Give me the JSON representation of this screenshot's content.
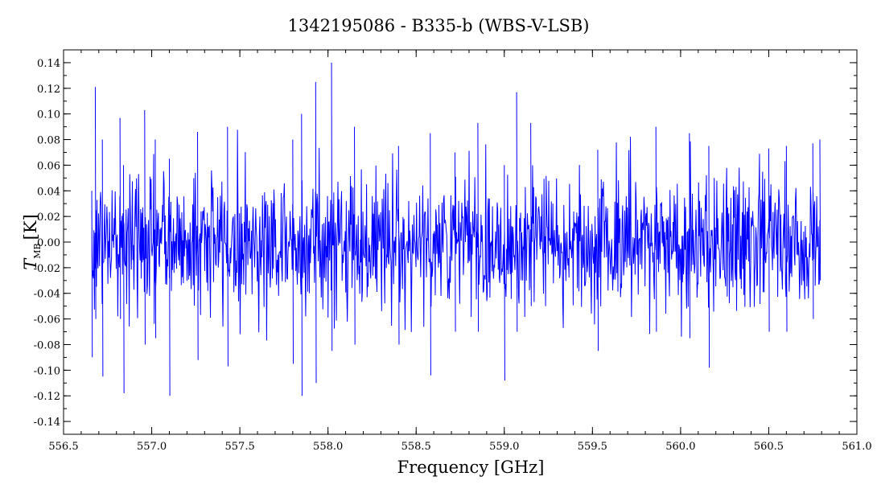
{
  "chart_data": {
    "type": "line",
    "title": "1342195086 - B335-b (WBS-V-LSB)",
    "xlabel": "Frequency [GHz]",
    "ylabel": {
      "symbol": "T",
      "subscript": "MB",
      "unit": "[K]"
    },
    "xlim": [
      556.5,
      561.0
    ],
    "ylim": [
      -0.15,
      0.15
    ],
    "x_ticks": [
      "556.5",
      "557.0",
      "557.5",
      "558.0",
      "558.5",
      "559.0",
      "559.5",
      "560.0",
      "560.5",
      "561.0"
    ],
    "y_ticks": [
      "-0.14",
      "-0.12",
      "-0.10",
      "-0.08",
      "-0.06",
      "-0.04",
      "-0.02",
      "0.00",
      "0.02",
      "0.04",
      "0.06",
      "0.08",
      "0.10",
      "0.12",
      "0.14"
    ],
    "grid": false,
    "legend": "none",
    "series": [
      {
        "color": "#0000ff",
        "x_start": 556.66,
        "x_end": 560.79,
        "n_points": 1400,
        "baseline": 0.0,
        "noise_rms": 0.032,
        "envelope_points": [
          [
            556.66,
            0.04,
            -0.09
          ],
          [
            556.68,
            0.121,
            -0.06
          ],
          [
            556.72,
            0.08,
            -0.105
          ],
          [
            556.82,
            0.097,
            -0.06
          ],
          [
            556.84,
            0.06,
            -0.118
          ],
          [
            556.96,
            0.103,
            -0.08
          ],
          [
            557.02,
            0.08,
            -0.075
          ],
          [
            557.1,
            0.065,
            -0.12
          ],
          [
            557.26,
            0.086,
            -0.092
          ],
          [
            557.43,
            0.09,
            -0.097
          ],
          [
            557.8,
            0.08,
            -0.095
          ],
          [
            557.85,
            0.1,
            -0.12
          ],
          [
            557.93,
            0.125,
            -0.11
          ],
          [
            558.02,
            0.14,
            -0.085
          ],
          [
            558.15,
            0.09,
            -0.08
          ],
          [
            558.4,
            0.075,
            -0.08
          ],
          [
            558.58,
            0.085,
            -0.104
          ],
          [
            558.72,
            0.07,
            -0.07
          ],
          [
            558.85,
            0.093,
            -0.07
          ],
          [
            559.0,
            0.06,
            -0.108
          ],
          [
            559.07,
            0.117,
            -0.07
          ],
          [
            559.15,
            0.093,
            -0.05
          ],
          [
            559.53,
            0.072,
            -0.085
          ],
          [
            559.86,
            0.09,
            -0.07
          ],
          [
            560.05,
            0.085,
            -0.075
          ],
          [
            560.16,
            0.075,
            -0.098
          ],
          [
            560.5,
            0.073,
            -0.07
          ],
          [
            560.6,
            0.075,
            -0.07
          ],
          [
            560.75,
            0.077,
            -0.06
          ],
          [
            560.79,
            0.08,
            -0.03
          ]
        ]
      }
    ]
  }
}
